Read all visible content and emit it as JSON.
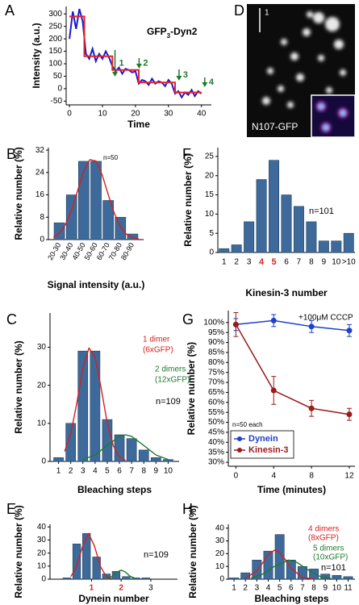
{
  "image_panel": {
    "panel_label": "D",
    "scale_label": "1",
    "caption": "N107-GFP"
  },
  "chart_data": [
    {
      "type": "line",
      "panel_label": "A",
      "title_parts": [
        "GFP",
        "3",
        "-Dyn2"
      ],
      "x_label": "Time",
      "y_label": "Intensity (a.u.)",
      "xlim": [
        -1,
        43
      ],
      "ylim": [
        -65,
        330
      ],
      "xticks": [
        0,
        10,
        20,
        30,
        40
      ],
      "yticks": [
        -50,
        0,
        50,
        100,
        150,
        200,
        250,
        300
      ],
      "series": [
        {
          "color": "#1a1acc",
          "x": [
            0,
            1,
            2,
            3,
            4,
            5,
            6,
            7,
            8,
            9,
            10,
            11,
            12,
            13,
            14,
            15,
            16,
            17,
            18,
            19,
            20,
            21,
            22,
            23,
            24,
            25,
            26,
            27,
            28,
            29,
            30,
            31,
            32,
            33,
            34,
            35,
            36,
            37,
            38,
            39,
            40
          ],
          "values": [
            200,
            310,
            240,
            320,
            270,
            140,
            120,
            160,
            110,
            140,
            120,
            150,
            125,
            90,
            70,
            85,
            60,
            80,
            75,
            65,
            70,
            20,
            35,
            30,
            15,
            40,
            20,
            30,
            25,
            10,
            35,
            20,
            -20,
            -10,
            -35,
            -15,
            -25,
            -5,
            -30,
            -10,
            -20
          ]
        },
        {
          "color": "#e8202a",
          "x": [
            0,
            4.5,
            4.5,
            13,
            13,
            21,
            21,
            32,
            32,
            40
          ],
          "values": [
            290,
            290,
            130,
            130,
            75,
            75,
            25,
            25,
            -15,
            -15
          ]
        }
      ],
      "step_times": [
        13.8,
        21.1,
        33.2,
        41
      ],
      "step_labels": [
        "1",
        "2",
        "3",
        "4"
      ],
      "step_color": "#1e7a2e"
    },
    {
      "type": "histogram",
      "panel_label": "B",
      "x_label": "Signal intensity (a.u.)",
      "y_label": "Relative number (%)",
      "bins": [
        20,
        30,
        40,
        50,
        60,
        70,
        80,
        90
      ],
      "categories": [
        "20-30",
        "30-40",
        "40-50",
        "50-60",
        "60-70",
        "70-80",
        "80-90"
      ],
      "values": [
        6,
        16,
        28,
        28,
        14,
        8,
        2
      ],
      "color": "#3d6a9a",
      "xlim": [
        16,
        94
      ],
      "ylim": [
        0,
        32.9
      ],
      "yticks": [
        0,
        8,
        16,
        24,
        32
      ],
      "fits": [
        {
          "color": "#d42020",
          "x": [
            20,
            25,
            30,
            35,
            40,
            45,
            50,
            55,
            60,
            65,
            70,
            75,
            80,
            85,
            90
          ],
          "values": [
            0.8,
            2.3,
            5.4,
            10.6,
            17.6,
            24.5,
            28.6,
            28.1,
            23.2,
            16.1,
            9.4,
            4.6,
            1.9,
            0.7,
            0.2
          ]
        }
      ],
      "annotations": [
        "n=50"
      ],
      "annotation_colors": [
        "#000000"
      ]
    },
    {
      "type": "bar",
      "panel_label": "F",
      "x_label": "Kinesin-3 number",
      "y_label": "Relative number (%)",
      "categories": [
        "1",
        "2",
        "3",
        "4",
        "5",
        "6",
        "7",
        "8",
        "9",
        "10",
        ">10"
      ],
      "values": [
        1,
        2,
        8,
        19,
        24,
        15,
        12,
        8,
        3,
        3,
        5
      ],
      "label_colors": [
        "#000000",
        "#000000",
        "#000000",
        "#e02020",
        "#e02020",
        "#000000",
        "#000000",
        "#000000",
        "#000000",
        "#000000",
        "#000000"
      ],
      "color": "#3d6a9a",
      "ylim": [
        0,
        27.3
      ],
      "yticks": [
        0,
        5,
        10,
        15,
        20,
        25
      ],
      "annotations": [
        "n=101"
      ],
      "annotation_colors": [
        "#000000"
      ]
    },
    {
      "type": "bar",
      "panel_label": "C",
      "x_label": "Bleaching steps",
      "y_label": "Relative number (%)",
      "x": [
        1,
        2,
        3,
        4,
        5,
        6,
        7,
        8,
        9,
        10
      ],
      "values": [
        1,
        10,
        29,
        29,
        11,
        7,
        6,
        3,
        1,
        0.5
      ],
      "color": "#3d6a9a",
      "xlim": [
        0.3,
        10.9
      ],
      "ylim": [
        0,
        39
      ],
      "xticks": [
        1,
        2,
        3,
        4,
        5,
        6,
        7,
        8,
        9,
        10
      ],
      "yticks": [
        0,
        10,
        20,
        30
      ],
      "fits": [
        {
          "color": "#d42020",
          "x": [
            1.5,
            2,
            2.5,
            3,
            3.5,
            4,
            4.5,
            5,
            5.5,
            6,
            6.5
          ],
          "values": [
            2.6,
            7.3,
            15.3,
            24.6,
            29.8,
            27.5,
            19.2,
            10.1,
            4.1,
            1.2,
            0.3
          ]
        },
        {
          "color": "#1e7a2e",
          "x": [
            3,
            4,
            5,
            6,
            6.5,
            7,
            8,
            9,
            10
          ],
          "values": [
            0.5,
            1.7,
            4.2,
            6.6,
            7,
            6.6,
            4.2,
            1.7,
            0.5
          ]
        }
      ],
      "annotations": [
        "1 dimer",
        "(6xGFP)",
        "2 dimers",
        "(12xGFP)",
        "n=109"
      ],
      "annotation_colors": [
        "#d42020",
        "#d42020",
        "#1e7a2e",
        "#1e7a2e",
        "#000000"
      ]
    },
    {
      "type": "line",
      "panel_label": "G",
      "x_label": "Time (minutes)",
      "y_label": "Relative number (%)",
      "x": [
        0,
        4,
        8,
        12
      ],
      "xlim": [
        -0.8,
        12.6
      ],
      "ylim": [
        28,
        106
      ],
      "xticks": [
        0,
        4,
        8,
        12
      ],
      "yticks": [
        {
          "value": 100,
          "label": "100%"
        },
        {
          "value": 95,
          "label": "95%"
        },
        {
          "value": 90,
          "label": "90%"
        },
        {
          "value": 85,
          "label": "85%"
        },
        {
          "value": 80,
          "label": "80%"
        },
        {
          "value": 75,
          "label": "75%"
        },
        {
          "value": 70,
          "label": "70%"
        },
        {
          "value": 65,
          "label": "65%"
        },
        {
          "value": 60,
          "label": "60%"
        },
        {
          "value": 55,
          "label": "55%"
        },
        {
          "value": 50,
          "label": "50%"
        },
        {
          "value": 45,
          "label": "45%"
        },
        {
          "value": 40,
          "label": "40%"
        },
        {
          "value": 35,
          "label": "35%"
        },
        {
          "value": 30,
          "label": "30%"
        }
      ],
      "markers": true,
      "legend": "lower left",
      "series": [
        {
          "name": "Dynein",
          "color": "#1f3fcc",
          "values": [
            99,
            101,
            98,
            96
          ],
          "errors": [
            3,
            3,
            3,
            3
          ]
        },
        {
          "name": "Kinesin-3",
          "color": "#9b1a1a",
          "values": [
            99,
            66,
            57,
            54
          ],
          "errors": [
            6,
            7,
            4,
            3
          ]
        }
      ],
      "annotations": [
        "+100μM CCCP",
        "n=50 each"
      ],
      "annotation_colors": [
        "#000000",
        "#000000"
      ]
    },
    {
      "type": "bar",
      "panel_label": "E",
      "x_label": "Dynein number",
      "y_label": "Relative number (%)",
      "x": [
        0.17,
        0.5,
        0.83,
        1.17,
        1.5,
        1.83,
        2.17,
        2.5,
        2.83
      ],
      "values": [
        1,
        27,
        35,
        17,
        4,
        6,
        2,
        1,
        1
      ],
      "color": "#3d6a9a",
      "xlim": [
        -0.4,
        3.9
      ],
      "ylim": [
        0,
        42
      ],
      "xticks": [
        1,
        2,
        3
      ],
      "xtick_label_colors": [
        "#d42020",
        "#d42020",
        "#000000"
      ],
      "yticks": [
        0,
        10,
        20,
        30,
        40
      ],
      "fits": [
        {
          "color": "#d42020",
          "x": [
            0.3,
            0.5,
            0.7,
            0.9,
            1.1,
            1.3,
            1.5,
            1.7
          ],
          "values": [
            2,
            9.7,
            25.4,
            35,
            25.4,
            9.7,
            2,
            0.2
          ]
        },
        {
          "color": "#1e7a2e",
          "x": [
            1.5,
            1.7,
            1.85,
            2,
            2.15,
            2.3,
            2.5
          ],
          "values": [
            0.3,
            2.3,
            5.3,
            7,
            5.3,
            2.3,
            0.3
          ]
        }
      ],
      "annotations": [
        "n=109"
      ],
      "annotation_colors": [
        "#000000"
      ]
    },
    {
      "type": "bar",
      "panel_label": "H",
      "x_label": "Bleaching steps",
      "y_label": "Relative number (%)",
      "x": [
        1,
        2,
        3,
        4,
        5,
        6,
        7,
        8,
        9,
        10,
        11
      ],
      "values": [
        1,
        5,
        15,
        22,
        35,
        15,
        10,
        8,
        4,
        3,
        2
      ],
      "color": "#3d6a9a",
      "xlim": [
        0.5,
        11.6
      ],
      "ylim": [
        0,
        43
      ],
      "xticks": [
        1,
        2,
        3,
        4,
        5,
        6,
        7,
        8,
        9,
        10,
        11
      ],
      "yticks": [
        0,
        10,
        20,
        30,
        40
      ],
      "fits": [
        {
          "color": "#d42020",
          "x": [
            2,
            3,
            3.5,
            4,
            4.6,
            5,
            5.5,
            6,
            7,
            8
          ],
          "values": [
            0.8,
            6.4,
            12.6,
            19.2,
            23,
            21.2,
            15.3,
            8.6,
            1.3,
            0.1
          ]
        },
        {
          "color": "#1e7a2e",
          "x": [
            2.5,
            3.5,
            4.5,
            5.8,
            6.5,
            7.5,
            8.5,
            9.5
          ],
          "values": [
            0.9,
            3.9,
            9.8,
            15,
            13.2,
            7.2,
            2.3,
            0.5
          ]
        }
      ],
      "annotations": [
        "4 dimers",
        "(8xGFP)",
        "5 dimers",
        "(10xGFP)",
        "n=101"
      ],
      "annotation_colors": [
        "#d42020",
        "#d42020",
        "#1e7a2e",
        "#1e7a2e",
        "#000000"
      ]
    }
  ]
}
